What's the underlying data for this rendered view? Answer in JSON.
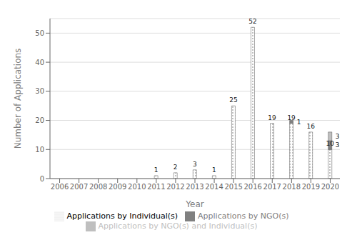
{
  "chart_data": {
    "type": "bar",
    "title": "",
    "xlabel": "Year",
    "ylabel": "Number of Applications",
    "categories": [
      "2006",
      "2007",
      "2008",
      "2009",
      "2010",
      "2011",
      "2012",
      "2013",
      "2014",
      "2015",
      "2016",
      "2017",
      "2018",
      "2019",
      "2020"
    ],
    "series": [
      {
        "name": "Applications by Individual(s)",
        "color": "#ffffff",
        "values": [
          0,
          0,
          0,
          0,
          0,
          1,
          2,
          3,
          1,
          25,
          52,
          19,
          19,
          16,
          10
        ]
      },
      {
        "name": "Applications by NGO(s)",
        "color": "#808080",
        "values": [
          0,
          0,
          0,
          0,
          0,
          0,
          0,
          0,
          0,
          0,
          0,
          0,
          1,
          0,
          3
        ]
      },
      {
        "name": "Applications by NGO(s) and Individual(s)",
        "color": "#bfbfbf",
        "values": [
          0,
          0,
          0,
          0,
          0,
          0,
          0,
          0,
          0,
          0,
          0,
          0,
          0,
          0,
          3
        ]
      }
    ],
    "stacked": true,
    "ylim": [
      0,
      55
    ],
    "yticks": [
      0,
      10,
      20,
      30,
      40,
      50
    ],
    "grid": true,
    "legend": "bottom",
    "data_labels": true
  }
}
